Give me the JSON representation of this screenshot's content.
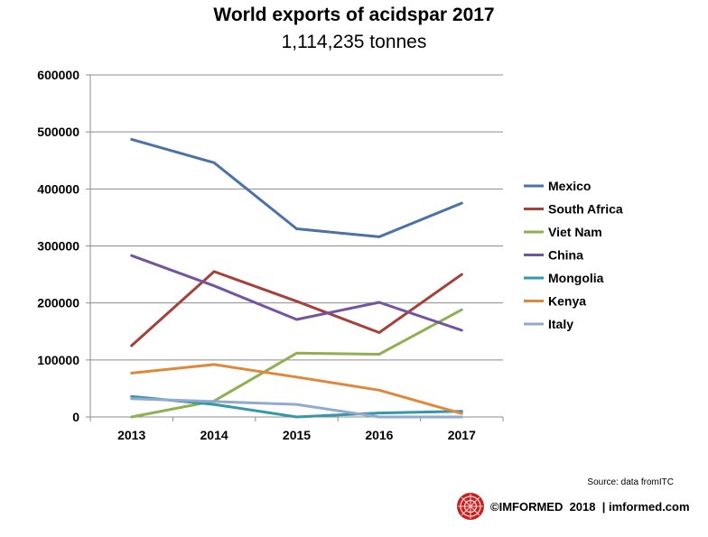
{
  "chart_data": {
    "type": "line",
    "title": "World exports of acidspar 2017",
    "subtitle": "1,114,235  tonnes",
    "xlabel": "",
    "ylabel": "",
    "categories": [
      "2013",
      "2014",
      "2015",
      "2016",
      "2017"
    ],
    "ylim": [
      0,
      600000
    ],
    "yticks": [
      "0",
      "100000",
      "200000",
      "300000",
      "400000",
      "500000",
      "600000"
    ],
    "grid": "horizontal",
    "legend_position": "right",
    "series": [
      {
        "name": "Mexico",
        "color": "#4a72a8",
        "values": [
          487000,
          446000,
          330000,
          316000,
          375000
        ]
      },
      {
        "name": "South Africa",
        "color": "#a6403a",
        "values": [
          125000,
          255000,
          203000,
          148000,
          250000
        ]
      },
      {
        "name": "Viet Nam",
        "color": "#8eb050",
        "values": [
          0,
          28000,
          112000,
          110000,
          188000
        ]
      },
      {
        "name": "China",
        "color": "#7254a0",
        "values": [
          283000,
          230000,
          171000,
          201000,
          152000
        ]
      },
      {
        "name": "Mongolia",
        "color": "#3598aa",
        "values": [
          36000,
          22000,
          0,
          7000,
          10000
        ]
      },
      {
        "name": "Kenya",
        "color": "#e0883a",
        "values": [
          77000,
          92000,
          70000,
          47000,
          6000
        ]
      },
      {
        "name": "Italy",
        "color": "#92a9d0",
        "values": [
          32000,
          27000,
          22000,
          0,
          0
        ]
      }
    ]
  },
  "source": "Source: data fromITC",
  "footer": {
    "logo_icon": "imformed-logo-icon",
    "text": "©IMFORMED  2018  | imformed.com"
  }
}
